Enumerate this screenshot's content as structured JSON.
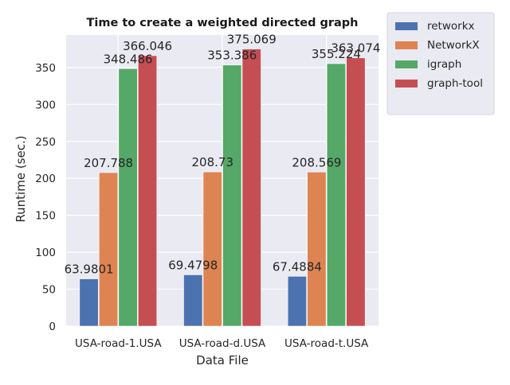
{
  "chart_data": {
    "type": "bar",
    "title": "Time to create a weighted directed graph",
    "xlabel": "Data File",
    "ylabel": "Runtime (sec.)",
    "categories": [
      "USA-road-1.USA",
      "USA-road-d.USA",
      "USA-road-t.USA"
    ],
    "series": [
      {
        "name": "retworkx",
        "color": "#4c72b0",
        "values": [
          63.9801,
          69.4798,
          67.4884
        ],
        "labels": [
          "63.9801",
          "69.4798",
          "67.4884"
        ]
      },
      {
        "name": "NetworkX",
        "color": "#dd8452",
        "values": [
          207.788,
          208.73,
          208.569
        ],
        "labels": [
          "207.788",
          "208.73",
          "208.569"
        ]
      },
      {
        "name": "igraph",
        "color": "#55a868",
        "values": [
          348.486,
          353.386,
          355.224
        ],
        "labels": [
          "348.486",
          "353.386",
          "355.224"
        ]
      },
      {
        "name": "graph-tool",
        "color": "#c44e52",
        "values": [
          366.046,
          375.069,
          363.074
        ],
        "labels": [
          "366.046",
          "375.069",
          "363.074"
        ]
      }
    ],
    "yticks": [
      0,
      50,
      100,
      150,
      200,
      250,
      300,
      350
    ],
    "ylim": [
      0,
      394
    ],
    "grid": true,
    "legend_position": "outside-top-right",
    "plot_background": "#eaeaf2",
    "grid_color": "#ffffff"
  }
}
